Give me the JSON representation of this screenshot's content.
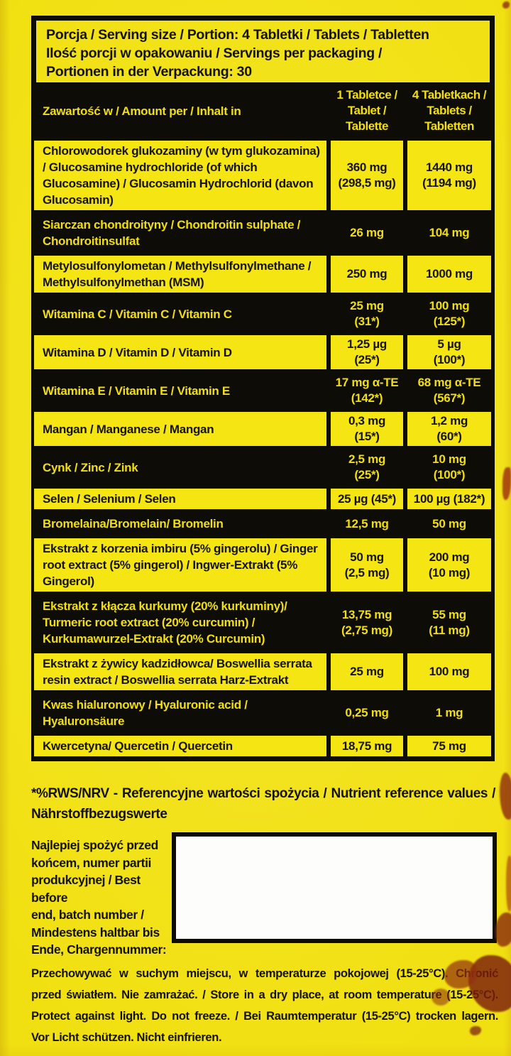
{
  "serving": {
    "line1_label": "Porcja / Serving size / Portion:",
    "line1_value": " 4 Tabletki / Tablets / Tabletten",
    "line2": "Ilość porcji w opakowaniu / Servings per packaging /",
    "line3_label": "Portionen in der Verpackung:",
    "line3_value": " 30"
  },
  "table": {
    "header": {
      "name": "Zawartość w / Amount per / Inhalt in",
      "col1": "1 Tabletce /\nTablet /\nTablette",
      "col2": "4 Tabletkach /\nTablets /\nTabletten"
    },
    "rows": [
      {
        "name": "Chlorowodorek glukozaminy (w tym glukozamina) / Glucosamine hydrochloride (of which  Glucosamine) / Glucosamin Hydrochlorid (davon Glucosamin)",
        "per1": "360 mg\n(298,5 mg)",
        "per4": "1440 mg\n(1194 mg)"
      },
      {
        "name": "Siarczan chondroityny / Chondroitin sulphate / Chondroitinsulfat",
        "per1": "26 mg",
        "per4": "104 mg"
      },
      {
        "name": "Metylosulfonylometan / Methylsulfonylmethane / Methylsulfonylmethan (MSM)",
        "per1": "250 mg",
        "per4": "1000 mg"
      },
      {
        "name": "Witamina C / Vitamin C / Vitamin C",
        "per1": "25 mg\n(31*)",
        "per4": "100 mg\n(125*)"
      },
      {
        "name": "Witamina D / Vitamin D / Vitamin D",
        "per1": "1,25 µg\n(25*)",
        "per4": "5 µg\n(100*)"
      },
      {
        "name": "Witamina E / Vitamin E / Vitamin E",
        "per1": "17 mg α-TE\n(142*)",
        "per4": "68 mg α-TE\n(567*)"
      },
      {
        "name": "Mangan / Manganese / Mangan",
        "per1": "0,3 mg\n(15*)",
        "per4": "1,2 mg\n(60*)"
      },
      {
        "name": "Cynk / Zinc / Zink",
        "per1": "2,5 mg\n(25*)",
        "per4": "10 mg\n(100*)"
      },
      {
        "name": "Selen / Selenium / Selen",
        "per1": "25 µg (45*)",
        "per4": "100 µg (182*)"
      },
      {
        "name": "Bromelaina/Bromelain/ Bromelin",
        "per1": "12,5 mg",
        "per4": "50 mg"
      },
      {
        "name": "Ekstrakt z korzenia imbiru (5% gingerolu) / Ginger root extract (5% gingerol) / Ingwer-Extrakt (5% Gingerol)",
        "per1": "50 mg\n(2,5 mg)",
        "per4": "200 mg\n(10 mg)"
      },
      {
        "name": "Ekstrakt z kłącza kurkumy (20% kurkuminy)/ Turmeric root extract (20% curcumin) / Kurkumawurzel-Extrakt (20% Curcumin)",
        "per1": "13,75 mg\n(2,75 mg)",
        "per4": "55 mg\n(11 mg)"
      },
      {
        "name": "Ekstrakt z żywicy kadzidłowca/ Boswellia serrata resin extract / Boswellia serrata Harz-Extrakt",
        "per1": "25 mg",
        "per4": "100 mg"
      },
      {
        "name": "Kwas hialuronowy / Hyaluronic acid / Hyaluronsäure",
        "per1": "0,25 mg",
        "per4": "1 mg"
      },
      {
        "name": "Kwercetyna/ Quercetin / Quercetin",
        "per1": "18,75 mg",
        "per4": "75 mg"
      }
    ]
  },
  "notes": {
    "nrv_line1": "*%RWS/NRV - Referencyjne wartości spożycia / Nutrient reference values /",
    "nrv_line2": "Nährstoffbezugswerte"
  },
  "batch": {
    "label": "Najlepiej spożyć przed\nkońcem, numer partii\nprodukcyjnej / Best before\nend, batch number /\nMindestens  haltbar bis\nEnde, Chargennummer:"
  },
  "storage": {
    "line1": "Przechowywać w suchym miejscu, w temperaturze pokojowej (15-25°C). Chronić",
    "line2": "przed światłem. Nie zamrażać. / Store in a dry place, at room temperature (15-25°C).",
    "line3": "Protect against light. Do not freeze. / Bei Raumtemperatur (15-25°C) trocken lagern.",
    "line4": "Vor Licht schützen. Nicht einfrieren."
  },
  "colors": {
    "label_yellow": "#f1e011",
    "cell_yellow": "#f4e513",
    "ink_black": "#0d0c06",
    "text_yellow": "#f2df12",
    "stain_red": "#8a2c12"
  }
}
